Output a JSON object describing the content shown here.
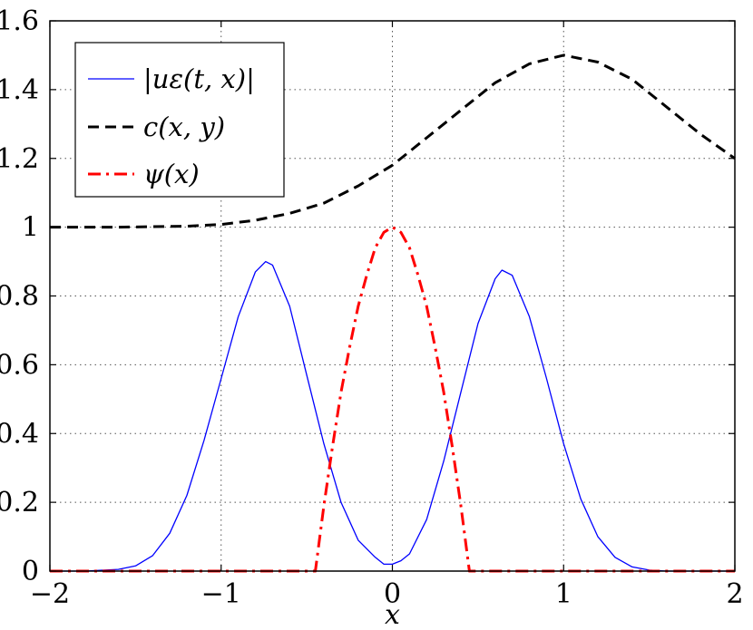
{
  "chart_data": {
    "type": "line",
    "title": "",
    "xlabel": "x",
    "ylabel": "",
    "xlim": [
      -2,
      2
    ],
    "ylim": [
      0,
      1.6
    ],
    "grid": true,
    "legend_position": "top-left",
    "x_ticks": [
      -2,
      -1,
      0,
      1,
      2
    ],
    "x_tick_labels": [
      "−2",
      "−1",
      "0",
      "1",
      "2"
    ],
    "y_ticks": [
      0,
      0.2,
      0.4,
      0.6,
      0.8,
      1.0,
      1.2,
      1.4,
      1.6
    ],
    "y_tick_labels": [
      "0",
      "0.2",
      "0.4",
      "0.6",
      "0.8",
      "1",
      "1.2",
      "1.4",
      "1.6"
    ],
    "series": [
      {
        "name": "|uε(t, x)|",
        "color": "#0000ff",
        "style": "solid",
        "x": [
          -2.0,
          -1.8,
          -1.6,
          -1.5,
          -1.4,
          -1.3,
          -1.2,
          -1.1,
          -1.0,
          -0.9,
          -0.8,
          -0.74,
          -0.7,
          -0.6,
          -0.5,
          -0.4,
          -0.3,
          -0.2,
          -0.1,
          -0.05,
          0.0,
          0.05,
          0.1,
          0.2,
          0.3,
          0.4,
          0.5,
          0.6,
          0.64,
          0.7,
          0.8,
          0.9,
          1.0,
          1.1,
          1.2,
          1.3,
          1.4,
          1.5,
          1.6,
          1.8,
          2.0
        ],
        "y": [
          0.0,
          0.0,
          0.005,
          0.015,
          0.045,
          0.11,
          0.22,
          0.38,
          0.56,
          0.74,
          0.87,
          0.9,
          0.89,
          0.77,
          0.57,
          0.37,
          0.2,
          0.09,
          0.04,
          0.02,
          0.02,
          0.03,
          0.05,
          0.15,
          0.32,
          0.52,
          0.72,
          0.85,
          0.875,
          0.86,
          0.74,
          0.56,
          0.37,
          0.21,
          0.1,
          0.04,
          0.012,
          0.003,
          0.0,
          0.0,
          0.0
        ]
      },
      {
        "name": "c(x, y)",
        "color": "#000000",
        "style": "dashed",
        "x": [
          -2.0,
          -1.6,
          -1.2,
          -1.0,
          -0.8,
          -0.6,
          -0.4,
          -0.2,
          0.0,
          0.2,
          0.4,
          0.6,
          0.8,
          1.0,
          1.2,
          1.4,
          1.6,
          1.8,
          2.0
        ],
        "y": [
          1.0,
          1.0,
          1.003,
          1.008,
          1.02,
          1.04,
          1.07,
          1.12,
          1.18,
          1.26,
          1.34,
          1.42,
          1.475,
          1.5,
          1.48,
          1.43,
          1.35,
          1.27,
          1.2
        ]
      },
      {
        "name": "ψ(x)",
        "color": "#ff0000",
        "style": "dashdot",
        "x": [
          -2.0,
          -0.45,
          -0.4,
          -0.35,
          -0.3,
          -0.25,
          -0.2,
          -0.15,
          -0.1,
          -0.05,
          0.0,
          0.05,
          0.1,
          0.15,
          0.2,
          0.25,
          0.3,
          0.35,
          0.4,
          0.45,
          2.0
        ],
        "y": [
          0.0,
          0.0,
          0.19,
          0.36,
          0.52,
          0.65,
          0.77,
          0.86,
          0.94,
          0.985,
          1.0,
          0.985,
          0.94,
          0.86,
          0.77,
          0.65,
          0.52,
          0.36,
          0.19,
          0.0,
          0.0
        ]
      }
    ]
  }
}
